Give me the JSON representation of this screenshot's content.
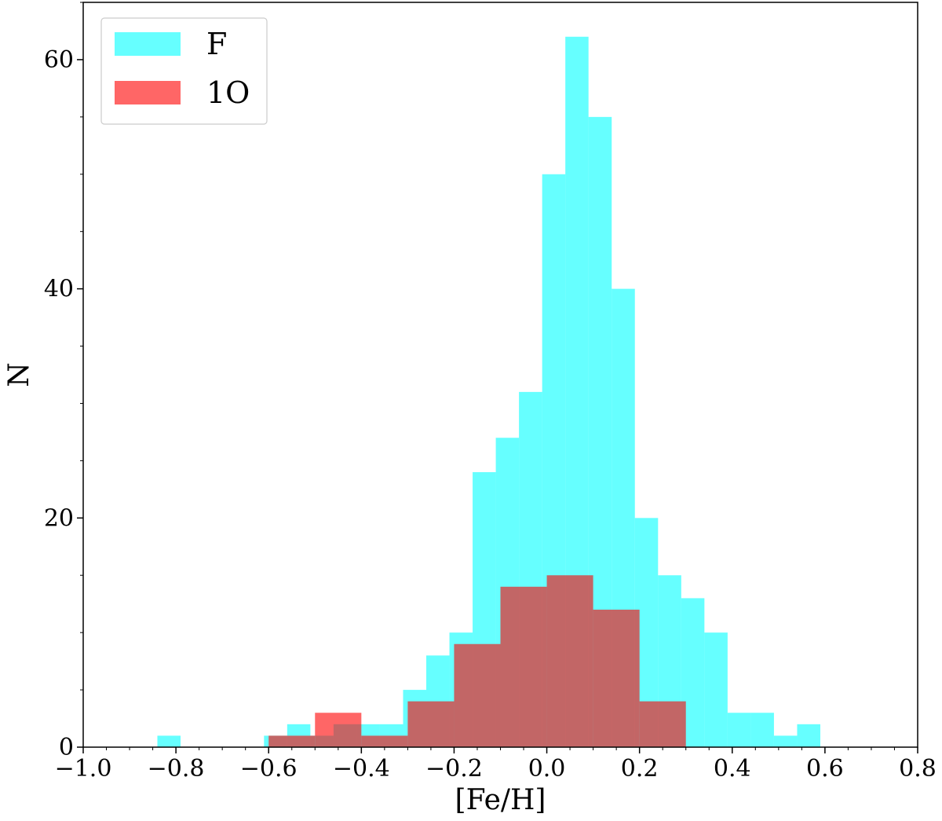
{
  "chart_data": {
    "type": "bar",
    "xlabel": "[Fe/H]",
    "ylabel": "N",
    "xlim": [
      -1.0,
      0.8
    ],
    "ylim": [
      0,
      65
    ],
    "xticks": [
      -1.0,
      -0.8,
      -0.6,
      -0.4,
      -0.2,
      0.0,
      0.2,
      0.4,
      0.6,
      0.8
    ],
    "xtick_labels": [
      "−1.0",
      "−0.8",
      "−0.6",
      "−0.4",
      "−0.2",
      "0.0",
      "0.2",
      "0.4",
      "0.6",
      "0.8"
    ],
    "yticks": [
      0,
      20,
      40,
      60
    ],
    "ytick_labels": [
      "0",
      "20",
      "40",
      "60"
    ],
    "grid": false,
    "legend_position": "top-left",
    "series": [
      {
        "name": "F",
        "color": "#00ffff",
        "opacity": 0.6,
        "bins": [
          {
            "x0": -0.84,
            "x1": -0.79,
            "count": 1
          },
          {
            "x0": -0.61,
            "x1": -0.56,
            "count": 1
          },
          {
            "x0": -0.56,
            "x1": -0.51,
            "count": 2
          },
          {
            "x0": -0.51,
            "x1": -0.46,
            "count": 1
          },
          {
            "x0": -0.46,
            "x1": -0.41,
            "count": 2
          },
          {
            "x0": -0.41,
            "x1": -0.36,
            "count": 2
          },
          {
            "x0": -0.36,
            "x1": -0.31,
            "count": 2
          },
          {
            "x0": -0.31,
            "x1": -0.26,
            "count": 5
          },
          {
            "x0": -0.26,
            "x1": -0.21,
            "count": 8
          },
          {
            "x0": -0.21,
            "x1": -0.16,
            "count": 10
          },
          {
            "x0": -0.16,
            "x1": -0.11,
            "count": 24
          },
          {
            "x0": -0.11,
            "x1": -0.06,
            "count": 27
          },
          {
            "x0": -0.06,
            "x1": -0.01,
            "count": 31
          },
          {
            "x0": -0.01,
            "x1": 0.04,
            "count": 50
          },
          {
            "x0": 0.04,
            "x1": 0.09,
            "count": 62
          },
          {
            "x0": 0.09,
            "x1": 0.14,
            "count": 55
          },
          {
            "x0": 0.14,
            "x1": 0.19,
            "count": 40
          },
          {
            "x0": 0.19,
            "x1": 0.24,
            "count": 20
          },
          {
            "x0": 0.24,
            "x1": 0.29,
            "count": 15
          },
          {
            "x0": 0.29,
            "x1": 0.34,
            "count": 13
          },
          {
            "x0": 0.34,
            "x1": 0.39,
            "count": 10
          },
          {
            "x0": 0.39,
            "x1": 0.44,
            "count": 3
          },
          {
            "x0": 0.44,
            "x1": 0.49,
            "count": 3
          },
          {
            "x0": 0.49,
            "x1": 0.54,
            "count": 1
          },
          {
            "x0": 0.54,
            "x1": 0.59,
            "count": 2
          }
        ]
      },
      {
        "name": "1O",
        "color": "#ff0000",
        "opacity": 0.6,
        "bins": [
          {
            "x0": -0.6,
            "x1": -0.5,
            "count": 1
          },
          {
            "x0": -0.5,
            "x1": -0.4,
            "count": 3
          },
          {
            "x0": -0.4,
            "x1": -0.3,
            "count": 1
          },
          {
            "x0": -0.3,
            "x1": -0.2,
            "count": 4
          },
          {
            "x0": -0.2,
            "x1": -0.1,
            "count": 9
          },
          {
            "x0": -0.1,
            "x1": 0.0,
            "count": 14
          },
          {
            "x0": 0.0,
            "x1": 0.1,
            "count": 15
          },
          {
            "x0": 0.1,
            "x1": 0.2,
            "count": 12
          },
          {
            "x0": 0.2,
            "x1": 0.3,
            "count": 4
          }
        ]
      }
    ]
  }
}
